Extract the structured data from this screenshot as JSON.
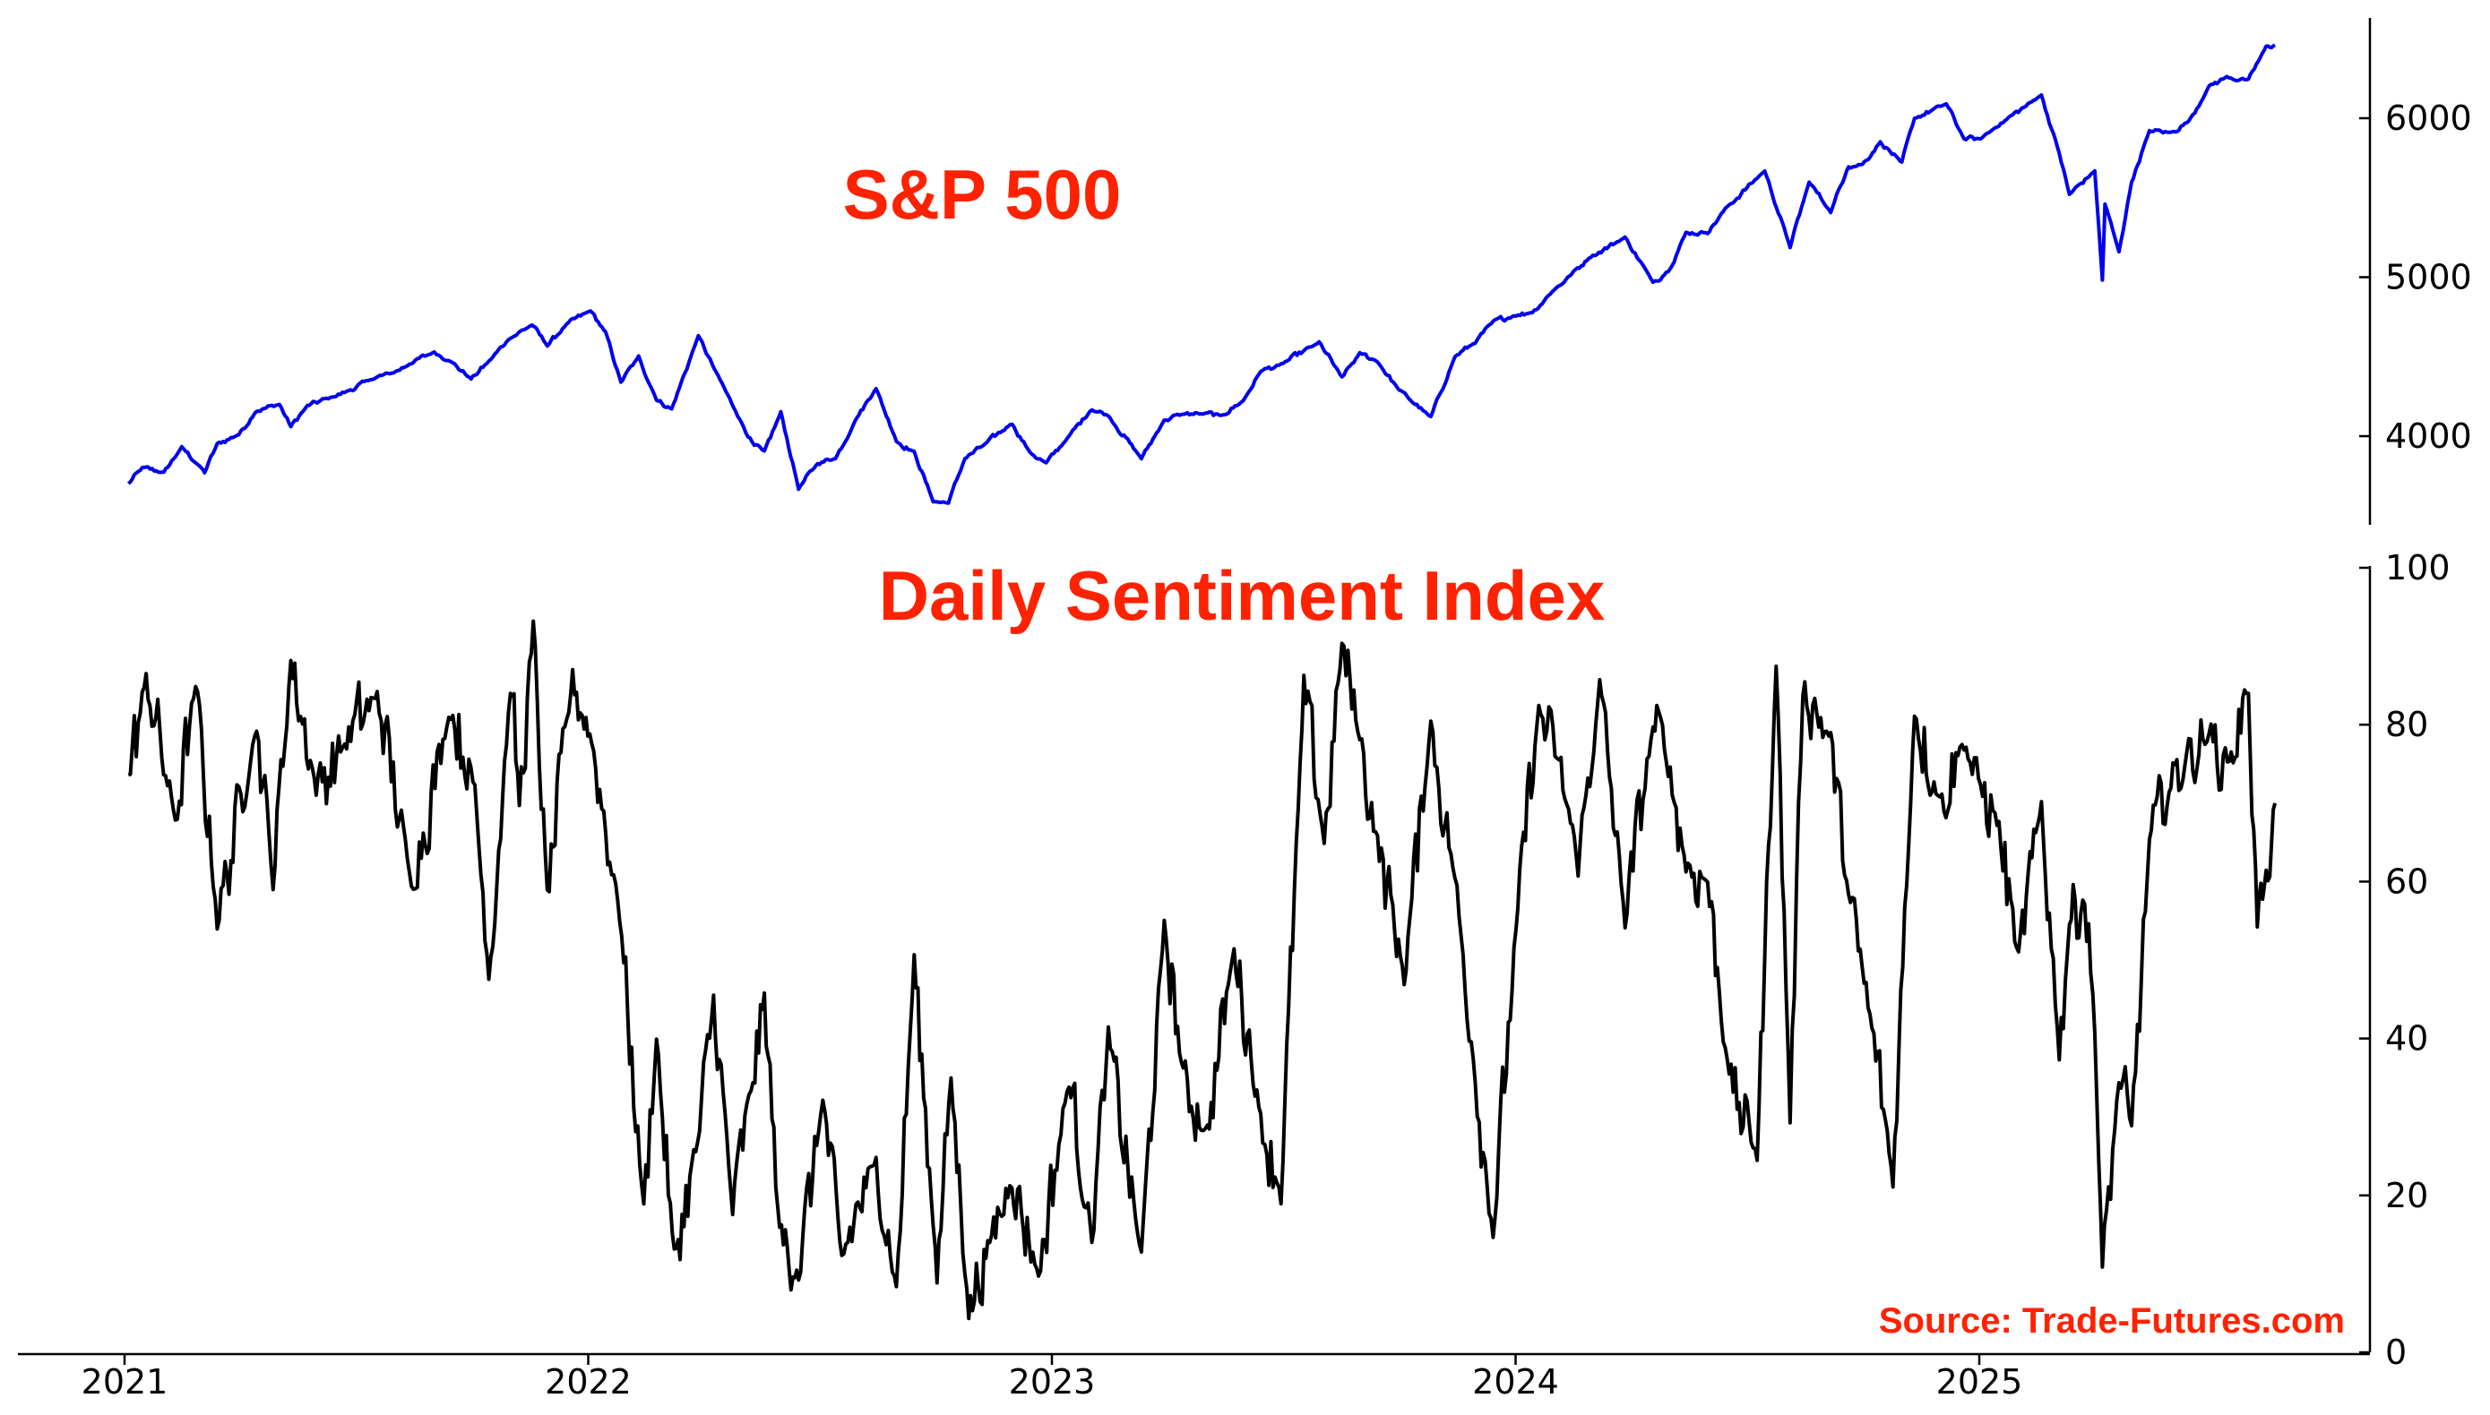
{
  "source": "Source: Trade-Futures.com",
  "colors": {
    "title": "#ff2200",
    "sp500_line": "#0000ee",
    "dsi_line": "#000000",
    "axis": "#000000"
  },
  "chart_data": [
    {
      "type": "line",
      "title": "S&P 500",
      "x_tick_labels": [
        "2021",
        "2022",
        "2023",
        "2024",
        "2025"
      ],
      "y_ticks": [
        4000,
        5000,
        6000
      ],
      "ylim": [
        3300,
        6650
      ],
      "axis_side": "right",
      "series": [
        {
          "x": [
            "2021-01-04",
            "2021-01-15",
            "2021-02-01",
            "2021-02-15",
            "2021-03-01",
            "2021-03-05",
            "2021-03-15",
            "2021-04-01",
            "2021-04-15",
            "2021-05-03",
            "2021-05-12",
            "2021-05-25",
            "2021-06-15",
            "2021-06-25",
            "2021-07-15",
            "2021-08-01",
            "2021-08-15",
            "2021-09-02",
            "2021-09-15",
            "2021-10-01",
            "2021-10-15",
            "2021-11-01",
            "2021-11-18",
            "2021-11-30",
            "2021-12-15",
            "2022-01-03",
            "2022-01-15",
            "2022-01-27",
            "2022-02-10",
            "2022-02-24",
            "2022-03-08",
            "2022-03-29",
            "2022-04-12",
            "2022-04-29",
            "2022-05-12",
            "2022-05-20",
            "2022-06-02",
            "2022-06-16",
            "2022-07-01",
            "2022-07-15",
            "2022-08-01",
            "2022-08-16",
            "2022-09-01",
            "2022-09-15",
            "2022-09-30",
            "2022-10-12",
            "2022-10-25",
            "2022-11-10",
            "2022-12-01",
            "2022-12-15",
            "2022-12-28",
            "2023-01-15",
            "2023-02-02",
            "2023-02-15",
            "2023-03-13",
            "2023-03-31",
            "2023-04-15",
            "2023-05-01",
            "2023-05-15",
            "2023-06-01",
            "2023-06-15",
            "2023-07-01",
            "2023-07-31",
            "2023-08-18",
            "2023-09-01",
            "2023-09-15",
            "2023-10-02",
            "2023-10-27",
            "2023-11-15",
            "2023-12-01",
            "2023-12-15",
            "2024-01-02",
            "2024-01-15",
            "2024-02-01",
            "2024-02-15",
            "2024-03-01",
            "2024-03-28",
            "2024-04-19",
            "2024-05-01",
            "2024-05-15",
            "2024-06-01",
            "2024-06-15",
            "2024-07-16",
            "2024-08-05",
            "2024-08-20",
            "2024-09-06",
            "2024-09-20",
            "2024-10-01",
            "2024-10-15",
            "2024-11-01",
            "2024-11-11",
            "2024-12-06",
            "2024-12-20",
            "2025-01-02",
            "2025-01-15",
            "2025-02-19",
            "2025-03-05",
            "2025-03-13",
            "2025-04-02",
            "2025-04-08",
            "2025-04-10",
            "2025-04-21",
            "2025-05-01",
            "2025-05-15",
            "2025-06-01",
            "2025-06-15",
            "2025-07-01",
            "2025-07-15",
            "2025-08-01",
            "2025-08-15",
            "2025-08-22"
          ],
          "values": [
            3700,
            3800,
            3770,
            3930,
            3810,
            3770,
            3950,
            4010,
            4160,
            4200,
            4060,
            4190,
            4250,
            4280,
            4360,
            4400,
            4460,
            4530,
            4470,
            4360,
            4470,
            4620,
            4700,
            4570,
            4700,
            4790,
            4650,
            4340,
            4500,
            4230,
            4170,
            4630,
            4400,
            4130,
            3940,
            3900,
            4150,
            3670,
            3830,
            3860,
            4120,
            4300,
            3970,
            3900,
            3590,
            3580,
            3860,
            3950,
            4080,
            3900,
            3830,
            4000,
            4170,
            4130,
            3860,
            4100,
            4140,
            4140,
            4130,
            4220,
            4410,
            4450,
            4590,
            4370,
            4520,
            4470,
            4290,
            4120,
            4500,
            4590,
            4720,
            4760,
            4780,
            4920,
            5020,
            5130,
            5250,
            4970,
            5040,
            5280,
            5280,
            5430,
            5670,
            5190,
            5600,
            5410,
            5700,
            5710,
            5850,
            5720,
            6000,
            6090,
            5870,
            5870,
            5950,
            6145,
            5780,
            5520,
            5670,
            4980,
            5460,
            5160,
            5600,
            5920,
            5910,
            5980,
            6200,
            6260,
            6240,
            6450,
            6460
          ]
        }
      ]
    },
    {
      "type": "line",
      "title": "Daily Sentiment Index",
      "x_tick_labels": [
        "2021",
        "2022",
        "2023",
        "2024",
        "2025"
      ],
      "y_ticks": [
        0,
        20,
        40,
        60,
        80,
        100
      ],
      "ylim": [
        0,
        100
      ],
      "axis_side": "right",
      "series": [
        {
          "x": [
            "2021-01-04",
            "2021-01-18",
            "2021-02-10",
            "2021-02-26",
            "2021-03-15",
            "2021-04-15",
            "2021-04-28",
            "2021-05-12",
            "2021-06-01",
            "2021-06-25",
            "2021-07-19",
            "2021-08-15",
            "2021-09-15",
            "2021-10-04",
            "2021-10-15",
            "2021-11-01",
            "2021-11-08",
            "2021-11-19",
            "2021-11-30",
            "2021-12-20",
            "2022-01-04",
            "2022-01-26",
            "2022-02-14",
            "2022-02-24",
            "2022-03-10",
            "2022-03-30",
            "2022-04-10",
            "2022-04-25",
            "2022-05-11",
            "2022-05-20",
            "2022-06-01",
            "2022-06-16",
            "2022-07-05",
            "2022-07-20",
            "2022-08-16",
            "2022-09-01",
            "2022-09-15",
            "2022-10-03",
            "2022-10-14",
            "2022-10-28",
            "2022-11-15",
            "2022-12-01",
            "2022-12-22",
            "2023-01-15",
            "2023-02-02",
            "2023-02-15",
            "2023-03-13",
            "2023-03-31",
            "2023-04-15",
            "2023-05-04",
            "2023-05-25",
            "2023-06-15",
            "2023-07-01",
            "2023-07-19",
            "2023-08-04",
            "2023-08-18",
            "2023-09-01",
            "2023-09-15",
            "2023-10-06",
            "2023-10-27",
            "2023-11-15",
            "2023-12-01",
            "2023-12-15",
            "2024-01-05",
            "2024-01-20",
            "2024-02-05",
            "2024-02-20",
            "2024-03-08",
            "2024-03-28",
            "2024-04-19",
            "2024-05-01",
            "2024-05-15",
            "2024-06-01",
            "2024-06-18",
            "2024-07-10",
            "2024-07-25",
            "2024-08-05",
            "2024-08-15",
            "2024-09-06",
            "2024-09-20",
            "2024-10-10",
            "2024-10-25",
            "2024-11-11",
            "2024-12-01",
            "2024-12-20",
            "2025-01-02",
            "2025-01-15",
            "2025-02-01",
            "2025-02-19",
            "2025-03-05",
            "2025-03-13",
            "2025-03-25",
            "2025-04-02",
            "2025-04-08",
            "2025-04-21",
            "2025-05-01",
            "2025-05-15",
            "2025-06-01",
            "2025-06-15",
            "2025-07-01",
            "2025-07-17",
            "2025-08-01",
            "2025-08-08",
            "2025-08-15",
            "2025-08-22"
          ],
          "values": [
            73,
            86,
            68,
            85,
            55,
            80,
            60,
            88,
            72,
            78,
            84,
            60,
            82,
            72,
            48,
            85,
            70,
            92,
            58,
            86,
            78,
            56,
            18,
            40,
            12,
            28,
            45,
            18,
            35,
            45,
            15,
            10,
            32,
            12,
            25,
            8,
            50,
            10,
            35,
            5,
            15,
            22,
            10,
            35,
            15,
            40,
            12,
            55,
            35,
            28,
            52,
            30,
            20,
            85,
            65,
            90,
            78,
            65,
            48,
            80,
            60,
            35,
            15,
            60,
            82,
            75,
            62,
            85,
            55,
            80,
            75,
            62,
            60,
            35,
            25,
            88,
            30,
            85,
            78,
            58,
            40,
            22,
            82,
            70,
            78,
            72,
            68,
            50,
            70,
            38,
            55,
            58,
            42,
            10,
            35,
            28,
            65,
            72,
            77,
            78,
            75,
            85,
            55,
            60,
            70
          ]
        }
      ]
    }
  ]
}
